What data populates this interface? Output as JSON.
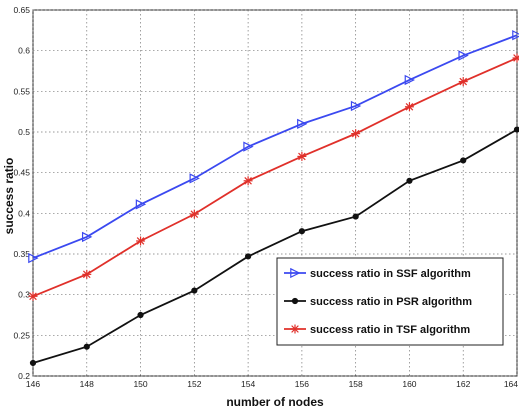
{
  "chart_data": {
    "type": "line",
    "xlabel": "number of nodes",
    "ylabel": "success ratio",
    "xlim": [
      146,
      164
    ],
    "ylim": [
      0.2,
      0.65
    ],
    "xticks": [
      146,
      148,
      150,
      152,
      154,
      156,
      158,
      160,
      162,
      164
    ],
    "yticks": [
      0.2,
      0.25,
      0.3,
      0.35,
      0.4,
      0.45,
      0.5,
      0.55,
      0.6,
      0.65
    ],
    "xtick_labels": [
      "146",
      "148",
      "150",
      "152",
      "154",
      "156",
      "158",
      "160",
      "162",
      "164"
    ],
    "ytick_labels": [
      "0.2",
      "0.25",
      "0.3",
      "0.35",
      "0.4",
      "0.45",
      "0.5",
      "0.55",
      "0.6",
      "0.65"
    ],
    "grid": true,
    "legend_position": "lower-right",
    "x": [
      146,
      148,
      150,
      152,
      154,
      156,
      158,
      160,
      162,
      164
    ],
    "series": [
      {
        "name": "success ratio in SSF algorithm",
        "color": "#3b49f0",
        "marker": "triangle-right",
        "values": [
          0.345,
          0.371,
          0.411,
          0.443,
          0.482,
          0.51,
          0.532,
          0.564,
          0.594,
          0.619
        ]
      },
      {
        "name": "success ratio in PSR algorithm",
        "color": "#111111",
        "marker": "dot",
        "values": [
          0.216,
          0.236,
          0.275,
          0.305,
          0.347,
          0.378,
          0.396,
          0.44,
          0.465,
          0.503
        ]
      },
      {
        "name": "success ratio in TSF algorithm",
        "color": "#e0302a",
        "marker": "star",
        "values": [
          0.298,
          0.325,
          0.366,
          0.399,
          0.44,
          0.47,
          0.498,
          0.531,
          0.562,
          0.591
        ]
      }
    ]
  }
}
